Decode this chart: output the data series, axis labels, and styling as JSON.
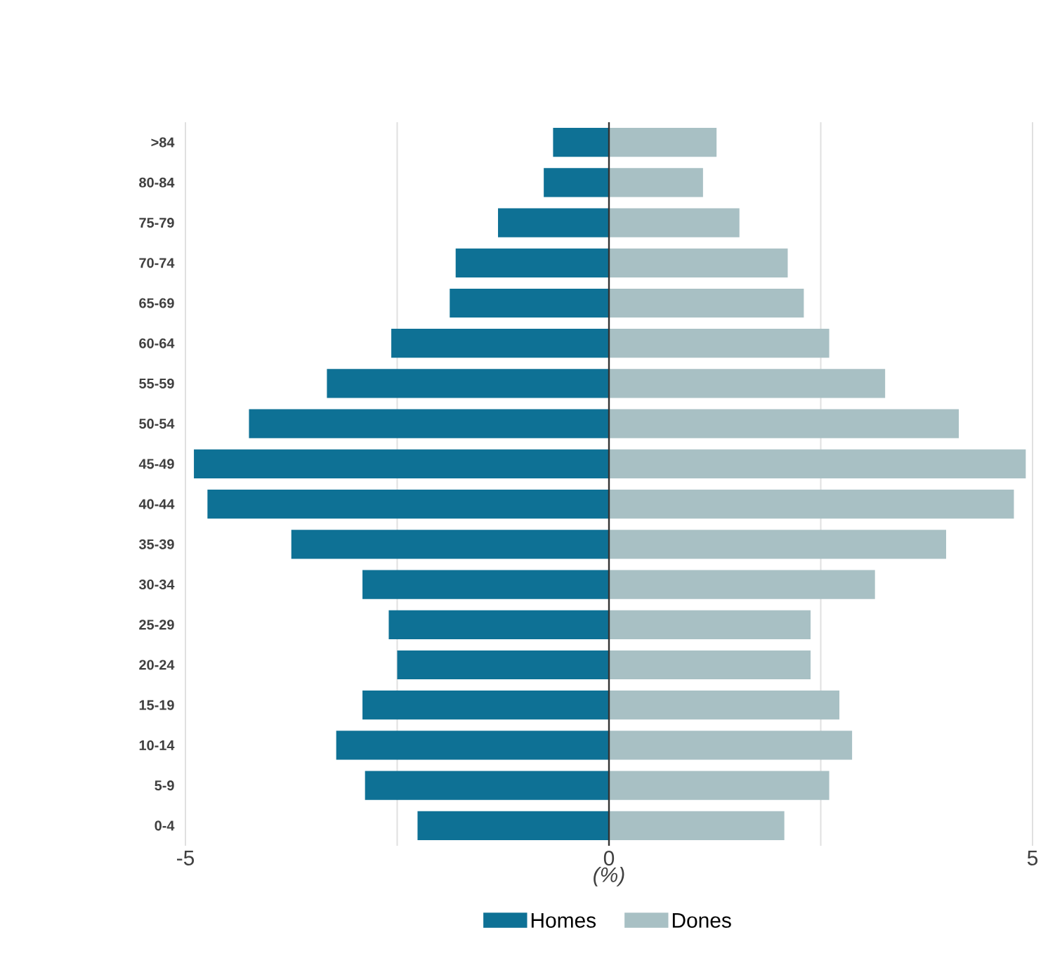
{
  "chart_data": {
    "type": "bar",
    "orientation": "horizontal",
    "xlabel": "(%)",
    "categories": [
      ">84",
      "80-84",
      "75-79",
      "70-74",
      "65-69",
      "60-64",
      "55-59",
      "50-54",
      "45-49",
      "40-44",
      "35-39",
      "30-34",
      "25-29",
      "20-24",
      "15-19",
      "10-14",
      "5-9",
      "0-4"
    ],
    "series": [
      {
        "name": "Homes",
        "color": "#0e7195",
        "values": [
          -0.66,
          -0.77,
          -1.31,
          -1.81,
          -1.88,
          -2.57,
          -3.33,
          -4.25,
          -4.9,
          -4.74,
          -3.75,
          -2.91,
          -2.6,
          -2.5,
          -2.91,
          -3.22,
          -2.88,
          -2.26
        ]
      },
      {
        "name": "Dones",
        "color": "#a8c0c4",
        "values": [
          1.27,
          1.11,
          1.54,
          2.11,
          2.3,
          2.6,
          3.26,
          4.13,
          4.92,
          4.78,
          3.98,
          3.14,
          2.38,
          2.38,
          2.72,
          2.87,
          2.6,
          2.07
        ]
      }
    ],
    "xlim": [
      -5,
      5
    ],
    "xticks": [
      -5,
      {
        "value": -2.5,
        "label": null
      },
      0,
      {
        "value": 2.5,
        "label": null
      },
      5
    ],
    "ref_lines": [
      {
        "axis": "x",
        "value": 0,
        "color": "#333333"
      }
    ],
    "grid": "x",
    "legend": "bottom",
    "stacked": true
  }
}
